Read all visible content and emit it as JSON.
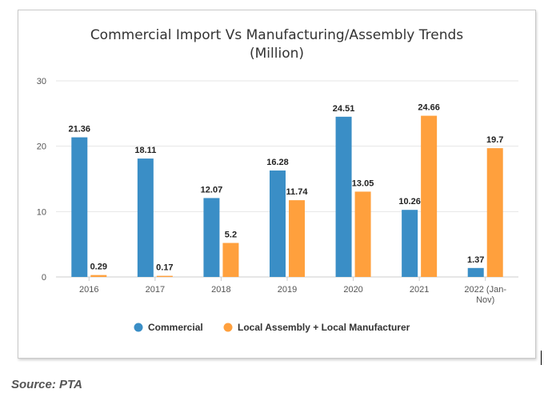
{
  "chart_data": {
    "type": "bar",
    "title": "Commercial Import Vs Manufacturing/Assembly Trends",
    "subtitle": "(Million)",
    "categories": [
      "2016",
      "2017",
      "2018",
      "2019",
      "2020",
      "2021",
      "2022 (Jan-Nov)"
    ],
    "series": [
      {
        "name": "Commercial",
        "color": "#3a8ec6",
        "values": [
          21.36,
          18.11,
          12.07,
          16.28,
          24.51,
          10.26,
          1.37
        ]
      },
      {
        "name": "Local Assembly + Local Manufacturer",
        "color": "#ffa03d",
        "values": [
          0.29,
          0.17,
          5.2,
          11.74,
          13.05,
          24.66,
          19.7
        ]
      }
    ],
    "data_labels": [
      [
        "21.36",
        "18.11",
        "12.07",
        "16.28",
        "24.51",
        "10.26",
        "1.37"
      ],
      [
        "0.29",
        "0.17",
        "5.2",
        "11.74",
        "13.05",
        "24.66",
        "19.7"
      ]
    ],
    "yticks": [
      0,
      10,
      20,
      30
    ],
    "ylim": [
      0,
      30
    ],
    "grid": true,
    "legend_position": "bottom"
  },
  "source": "Source: PTA"
}
